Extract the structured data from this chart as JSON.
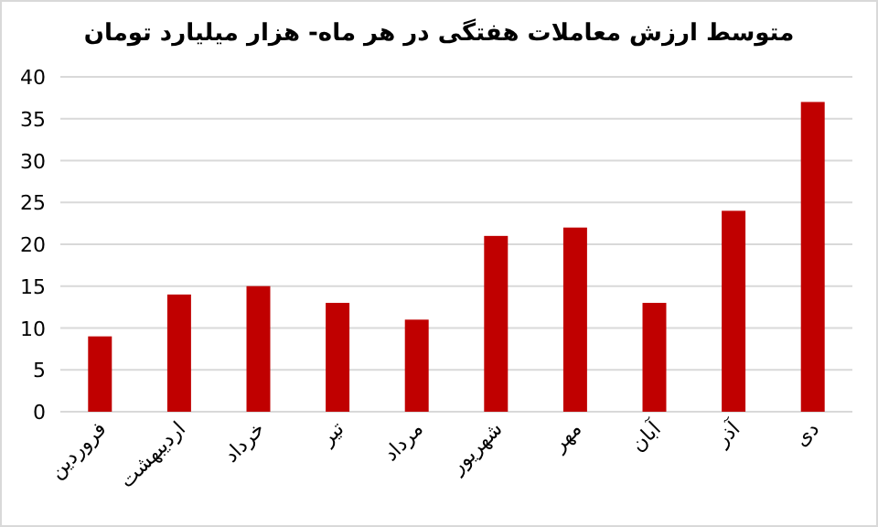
{
  "chart_data": {
    "type": "bar",
    "title": "متوسط ارزش معاملات هفتگی در هر ماه- هزار میلیارد تومان",
    "categories": [
      "فروردین",
      "اردیبهشت",
      "خرداد",
      "تیر",
      "مرداد",
      "شهریور",
      "مهر",
      "آبان",
      "آذر",
      "دی"
    ],
    "values": [
      9,
      14,
      15,
      13,
      11,
      21,
      22,
      13,
      24,
      37
    ],
    "color": "#c00000",
    "ylim": [
      0,
      40
    ],
    "yticks": [
      0,
      5,
      10,
      15,
      20,
      25,
      30,
      35,
      40
    ],
    "grid": "y"
  }
}
